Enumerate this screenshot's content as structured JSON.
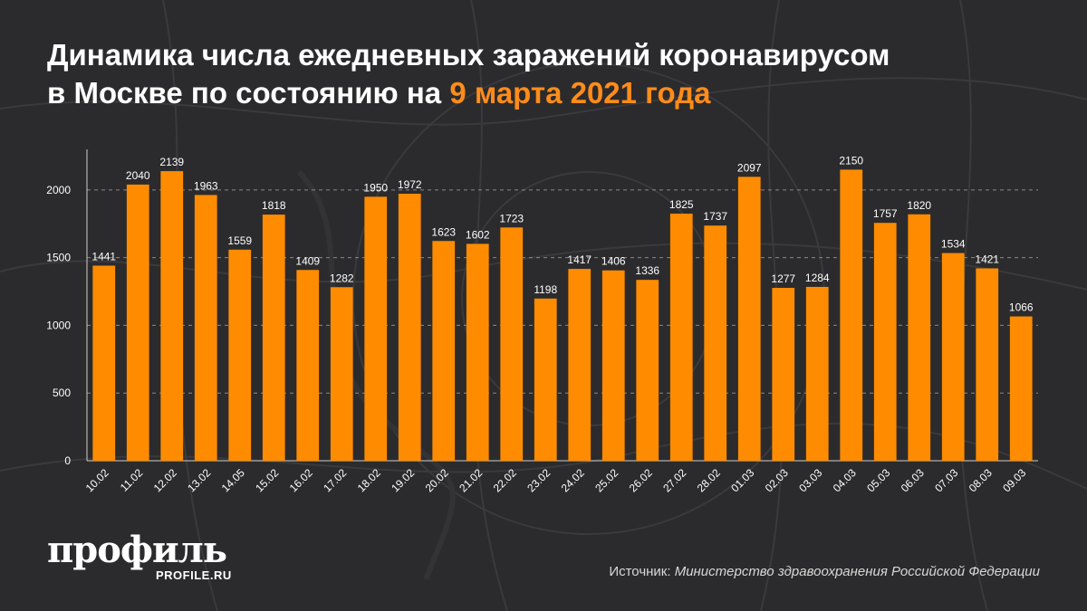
{
  "title": {
    "line1": "Динамика числа ежедневных заражений коронавирусом",
    "line2_prefix": "в Москве по состоянию на ",
    "line2_highlight": "9 марта 2021 года"
  },
  "colors": {
    "background": "#2b2b2d",
    "bar": "#ff8c00",
    "highlight": "#ff8c1a",
    "grid": "#8a8a8a",
    "text": "#ffffff"
  },
  "chart_data": {
    "type": "bar",
    "categories": [
      "10.02",
      "11.02",
      "12.02",
      "13.02",
      "14.05",
      "15.02",
      "16.02",
      "17.02",
      "18.02",
      "19.02",
      "20.02",
      "21.02",
      "22.02",
      "23.02",
      "24.02",
      "25.02",
      "26.02",
      "27.02",
      "28.02",
      "01.03",
      "02.03",
      "03.03",
      "04.03",
      "05.03",
      "06.03",
      "07.03",
      "08.03",
      "09.03"
    ],
    "values": [
      1441,
      2040,
      2139,
      1963,
      1559,
      1818,
      1409,
      1282,
      1950,
      1972,
      1623,
      1602,
      1723,
      1198,
      1417,
      1406,
      1336,
      1825,
      1737,
      2097,
      1277,
      1284,
      2150,
      1757,
      1820,
      1534,
      1421,
      1066
    ],
    "y_ticks": [
      0,
      500,
      1000,
      1500,
      2000
    ],
    "ylim": [
      0,
      2300
    ],
    "grid": true,
    "data_labels": true
  },
  "footer": {
    "logo_text": "профиль",
    "logo_site": "PROFILE.RU",
    "source_label": "Источник: ",
    "source_value": "Министерство здравоохранения Российской Федерации"
  }
}
